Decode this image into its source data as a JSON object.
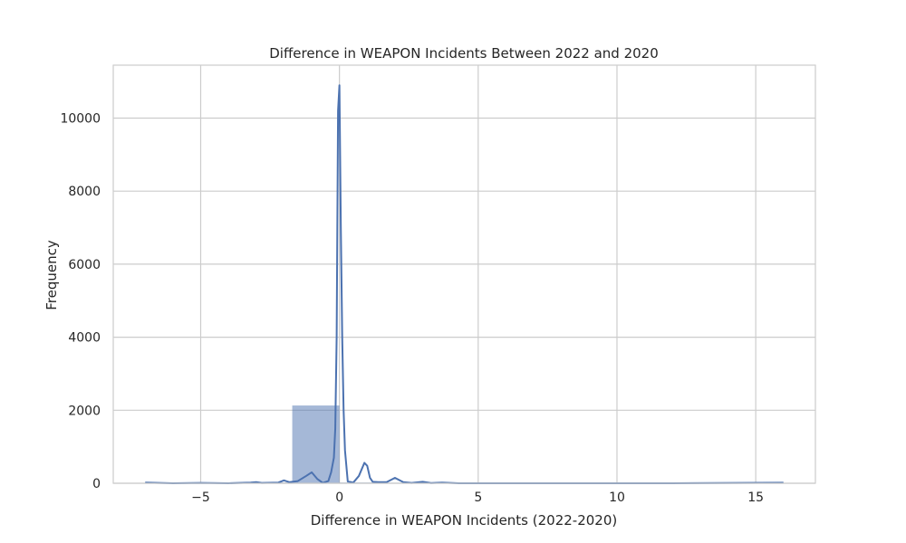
{
  "chart_data": {
    "type": "bar",
    "title": "Difference in WEAPON Incidents Between 2022 and 2020",
    "xlabel": "Difference in WEAPON Incidents (2022-2020)",
    "ylabel": "Frequency",
    "xlim": [
      -8.15,
      17.15
    ],
    "ylim": [
      0,
      11450
    ],
    "xticks": [
      -5,
      0,
      5,
      10,
      15
    ],
    "xtick_labels": [
      "−5",
      "0",
      "5",
      "10",
      "15"
    ],
    "yticks": [
      0,
      2000,
      4000,
      6000,
      8000,
      10000
    ],
    "ytick_labels": [
      "0",
      "2000",
      "4000",
      "6000",
      "8000",
      "10000"
    ],
    "grid": true,
    "histogram": {
      "bins": [
        {
          "x0": -7.0,
          "x1": -5.3,
          "count": 10
        },
        {
          "x0": -5.3,
          "x1": -3.4,
          "count": 5
        },
        {
          "x0": -3.4,
          "x1": -1.7,
          "count": 20
        },
        {
          "x0": -1.7,
          "x1": 0.0,
          "count": 2130
        },
        {
          "x0": 0.0,
          "x1": 1.7,
          "count": 20
        },
        {
          "x0": 1.7,
          "x1": 3.4,
          "count": 15
        },
        {
          "x0": 3.4,
          "x1": 5.1,
          "count": 10
        },
        {
          "x0": 5.1,
          "x1": 6.8,
          "count": 5
        },
        {
          "x0": 6.8,
          "x1": 8.5,
          "count": 5
        },
        {
          "x0": 8.5,
          "x1": 10.2,
          "count": 5
        },
        {
          "x0": 10.2,
          "x1": 11.9,
          "count": 5
        },
        {
          "x0": 11.9,
          "x1": 13.6,
          "count": 5
        },
        {
          "x0": 13.6,
          "x1": 15.3,
          "count": 5
        },
        {
          "x0": 15.3,
          "x1": 17.0,
          "count": 5
        }
      ],
      "color": "#4c72b0",
      "opacity": 0.5
    },
    "series": [
      {
        "type": "line",
        "color": "#4c72b0",
        "x": [
          -7.0,
          -6.0,
          -5.0,
          -4.0,
          -3.2,
          -3.0,
          -2.8,
          -2.2,
          -2.0,
          -1.8,
          -1.5,
          -1.2,
          -1.0,
          -0.8,
          -0.6,
          -0.4,
          -0.3,
          -0.2,
          -0.15,
          -0.1,
          -0.05,
          0.0,
          0.05,
          0.1,
          0.15,
          0.2,
          0.3,
          0.5,
          0.7,
          0.9,
          1.0,
          1.1,
          1.2,
          1.4,
          1.7,
          2.0,
          2.3,
          2.6,
          3.0,
          3.3,
          3.7,
          4.0,
          4.3,
          5.0,
          8.0,
          12.0,
          16.0
        ],
        "y": [
          20,
          0,
          10,
          0,
          20,
          30,
          10,
          20,
          80,
          30,
          60,
          200,
          300,
          120,
          10,
          60,
          300,
          700,
          1500,
          4000,
          10200,
          10900,
          7000,
          4000,
          2000,
          900,
          50,
          20,
          200,
          560,
          480,
          150,
          40,
          30,
          30,
          150,
          30,
          10,
          40,
          5,
          20,
          10,
          0,
          0,
          0,
          0,
          15
        ]
      }
    ]
  }
}
